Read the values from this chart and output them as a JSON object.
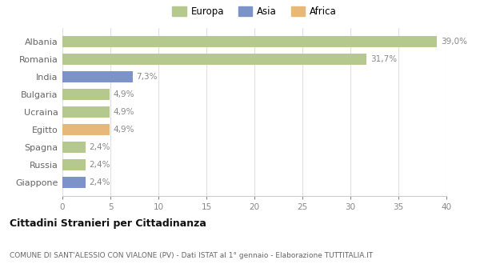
{
  "categories": [
    "Albania",
    "Romania",
    "India",
    "Bulgaria",
    "Ucraina",
    "Egitto",
    "Spagna",
    "Russia",
    "Giappone"
  ],
  "values": [
    39.0,
    31.7,
    7.3,
    4.9,
    4.9,
    4.9,
    2.4,
    2.4,
    2.4
  ],
  "labels": [
    "39,0%",
    "31,7%",
    "7,3%",
    "4,9%",
    "4,9%",
    "4,9%",
    "2,4%",
    "2,4%",
    "2,4%"
  ],
  "colors": [
    "#b5c98e",
    "#b5c98e",
    "#7b93c8",
    "#b5c98e",
    "#b5c98e",
    "#e8b87a",
    "#b5c98e",
    "#b5c98e",
    "#7b93c8"
  ],
  "legend": [
    {
      "label": "Europa",
      "color": "#b5c98e"
    },
    {
      "label": "Asia",
      "color": "#7b93c8"
    },
    {
      "label": "Africa",
      "color": "#e8b87a"
    }
  ],
  "xlim": [
    0,
    40
  ],
  "xticks": [
    0,
    5,
    10,
    15,
    20,
    25,
    30,
    35,
    40
  ],
  "title": "Cittadini Stranieri per Cittadinanza",
  "subtitle": "COMUNE DI SANT'ALESSIO CON VIALONE (PV) - Dati ISTAT al 1° gennaio - Elaborazione TUTTITALIA.IT",
  "background_color": "#ffffff",
  "plot_bg_color": "#ffffff",
  "grid_color": "#e0e0e0",
  "bar_alpha": 1.0,
  "label_color": "#888888",
  "ytick_color": "#666666"
}
